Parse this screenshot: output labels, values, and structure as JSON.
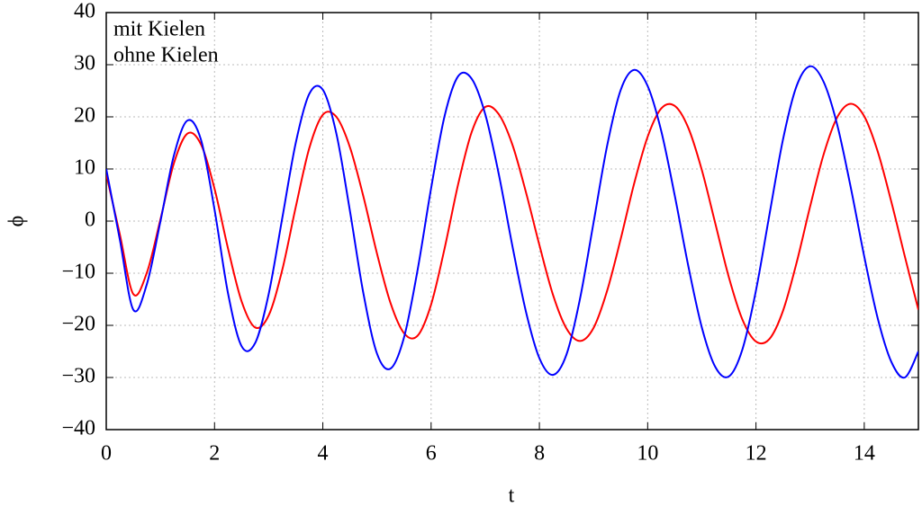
{
  "chart_data": {
    "type": "line",
    "xlabel": "t",
    "ylabel": "ϕ",
    "x": [
      0,
      0.25,
      0.5,
      0.75,
      1,
      1.25,
      1.5,
      1.75,
      2,
      2.25,
      2.5,
      2.75,
      3,
      3.25,
      3.5,
      3.75,
      4,
      4.25,
      4.5,
      4.75,
      5,
      5.25,
      5.5,
      5.75,
      6,
      6.25,
      6.5,
      6.75,
      7,
      7.25,
      7.5,
      7.75,
      8,
      8.25,
      8.5,
      8.75,
      9,
      9.25,
      9.5,
      9.75,
      10,
      10.25,
      10.5,
      10.75,
      11,
      11.25,
      11.5,
      11.75,
      12,
      12.25,
      12.5,
      12.75,
      13,
      13.25,
      13.5,
      13.75,
      14,
      14.25,
      14.5,
      14.75,
      15
    ],
    "series": [
      {
        "name": "mit Kielen",
        "color": "#ff0000",
        "values": [
          9,
          -2.5,
          -14,
          -9.9,
          0.3,
          11.1,
          16.8,
          14.7,
          6.2,
          -5.3,
          -15.4,
          -20.4,
          -18.1,
          -9.4,
          2.7,
          14.0,
          20.4,
          20.0,
          14.2,
          4.7,
          -6.2,
          -15.7,
          -21.5,
          -22.0,
          -16.0,
          -5.2,
          7.1,
          17.1,
          21.9,
          20.5,
          14.7,
          5.6,
          -4.6,
          -14.1,
          -20.6,
          -23,
          -20.5,
          -13.4,
          -3.5,
          7.2,
          16.2,
          21.6,
          22.1,
          17.9,
          9.8,
          -0.5,
          -10.8,
          -18.9,
          -23.1,
          -22.6,
          -17.2,
          -8.0,
          2.8,
          12.8,
          19.9,
          22.5,
          20.1,
          13.3,
          3.7,
          -6.8,
          -17
        ]
      },
      {
        "name": "ohne Kielen",
        "color": "#0000ff",
        "values": [
          10,
          -3.5,
          -17,
          -12.1,
          -0.1,
          12.6,
          19.3,
          15.6,
          2.2,
          -13.9,
          -24.0,
          -23.4,
          -14.0,
          0.5,
          15.0,
          24.4,
          25.2,
          16.8,
          2.0,
          -13.9,
          -25.4,
          -28.3,
          -22.3,
          -9.4,
          6.3,
          20.2,
          27.8,
          27.3,
          20.5,
          9.0,
          -4.7,
          -17.3,
          -26.3,
          -29.5,
          -25.6,
          -14.9,
          -0.3,
          14.4,
          25.1,
          29,
          25.9,
          17.3,
          4.9,
          -8.6,
          -20.4,
          -28.0,
          -29.8,
          -24.6,
          -13.3,
          1.3,
          15.7,
          25.9,
          29.7,
          26.7,
          18.5,
          6.5,
          -6.8,
          -18.7,
          -27.0,
          -30,
          -25
        ]
      }
    ],
    "xlim": [
      0,
      15
    ],
    "xticks": [
      0,
      2,
      4,
      6,
      8,
      10,
      12,
      14
    ],
    "ylim": [
      -40,
      40
    ],
    "yticks": [
      {
        "value": -40,
        "label": "−40"
      },
      {
        "value": -30,
        "label": "−30"
      },
      {
        "value": -20,
        "label": "−20"
      },
      {
        "value": -10,
        "label": "−10"
      },
      0,
      10,
      20,
      30,
      40
    ],
    "grid": true,
    "legend": "upper left"
  }
}
